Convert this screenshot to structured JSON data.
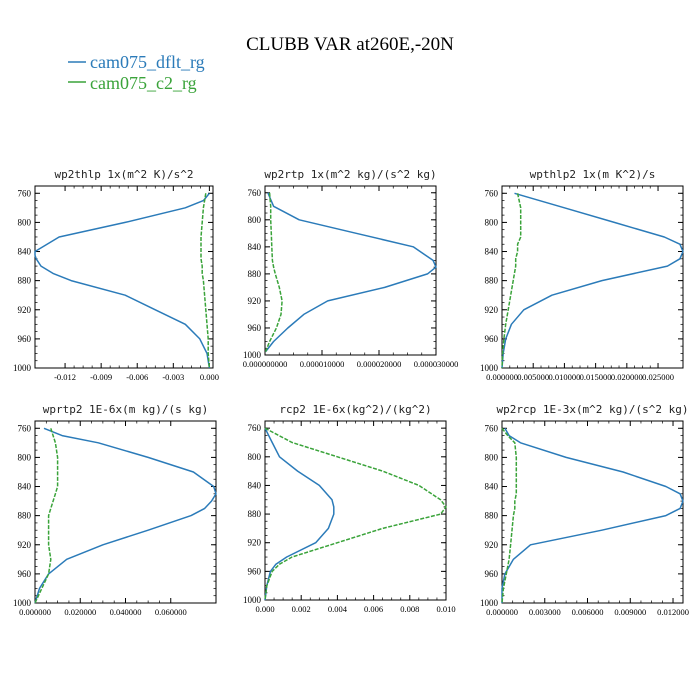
{
  "title": "CLUBB VAR at260E,-20N",
  "legend": [
    {
      "label": "cam075_dflt_rg",
      "color": "#2b7bb9"
    },
    {
      "label": "cam075_c2_rg",
      "color": "#3aa33a"
    }
  ],
  "chart_data": [
    {
      "type": "line",
      "title": "wp2thlp  1x(m^2 K)/s^2",
      "ylim": [
        1000,
        750
      ],
      "yticks": [
        "760",
        "800",
        "840",
        "880",
        "920",
        "960",
        "1000"
      ],
      "xlim": [
        -0.0145,
        0.0003
      ],
      "xticks": [
        -0.012,
        -0.009,
        -0.006,
        -0.003,
        0.0
      ],
      "xtick_labels": [
        "-0.012",
        "-0.009",
        "-0.006",
        "-0.003",
        "0.000"
      ],
      "y": [
        760,
        770,
        780,
        800,
        820,
        840,
        845,
        850,
        860,
        870,
        880,
        900,
        920,
        940,
        960,
        980,
        1000
      ],
      "series": [
        {
          "name": "cam075_dflt_rg",
          "values": [
            0.0,
            -0.0005,
            -0.002,
            -0.007,
            -0.0125,
            -0.0145,
            -0.0145,
            -0.0144,
            -0.014,
            -0.013,
            -0.0115,
            -0.007,
            -0.0045,
            -0.002,
            -0.0008,
            -0.0002,
            0.0
          ]
        },
        {
          "name": "cam075_c2_rg",
          "values": [
            -0.0003,
            -0.0004,
            -0.0005,
            -0.0006,
            -0.0007,
            -0.0007,
            -0.0007,
            -0.0007,
            -0.0006,
            -0.0006,
            -0.0005,
            -0.0004,
            -0.0003,
            -0.0002,
            -0.0001,
            -0.0001,
            0.0
          ]
        }
      ]
    },
    {
      "type": "line",
      "title": "wp2rtp  1x(m^2 kg)/(s^2 kg)",
      "ylim": [
        1000,
        750
      ],
      "yticks": [
        "760",
        "800",
        "840",
        "880",
        "920",
        "960",
        "1000"
      ],
      "xlim": [
        0.0,
        3e-05
      ],
      "xticks": [
        0.0,
        1e-05,
        2e-05,
        3e-05
      ],
      "xtick_labels": [
        "0.000000000",
        "0.000010000",
        "0.000020000",
        "0.000030000"
      ],
      "y": [
        760,
        770,
        780,
        800,
        820,
        840,
        860,
        870,
        880,
        900,
        920,
        940,
        960,
        980,
        995
      ],
      "series": [
        {
          "name": "cam075_dflt_rg",
          "values": [
            5e-07,
            1e-06,
            1.5e-06,
            6e-06,
            1.6e-05,
            2.6e-05,
            2.95e-05,
            3e-05,
            2.85e-05,
            2.1e-05,
            1.1e-05,
            6.8e-06,
            4e-06,
            1.5e-06,
            1e-07
          ]
        },
        {
          "name": "cam075_c2_rg",
          "values": [
            8e-07,
            9e-07,
            1e-06,
            1e-06,
            1.1e-06,
            1.2e-06,
            1.3e-06,
            1.5e-06,
            1.8e-06,
            2.5e-06,
            3e-06,
            2.8e-06,
            2e-06,
            8e-07,
            1e-07
          ]
        }
      ]
    },
    {
      "type": "line",
      "title": "wpthlp2  1x(m K^2)/s",
      "ylim": [
        1000,
        750
      ],
      "yticks": [
        "760",
        "800",
        "840",
        "880",
        "920",
        "960",
        "1000"
      ],
      "xlim": [
        0.0,
        0.029
      ],
      "xticks": [
        0.0,
        0.005,
        0.01,
        0.015,
        0.02,
        0.025
      ],
      "xtick_labels": [
        "0.000000",
        "0.005000",
        "0.010000",
        "0.015000",
        "0.020000",
        "0.025000"
      ],
      "y": [
        760,
        780,
        800,
        820,
        830,
        840,
        850,
        860,
        880,
        900,
        920,
        940,
        960,
        980,
        1000
      ],
      "series": [
        {
          "name": "cam075_dflt_rg",
          "values": [
            0.002,
            0.01,
            0.018,
            0.026,
            0.0285,
            0.029,
            0.0285,
            0.0265,
            0.016,
            0.008,
            0.0035,
            0.0015,
            0.0006,
            0.0002,
            0.0
          ]
        },
        {
          "name": "cam075_c2_rg",
          "values": [
            0.0025,
            0.003,
            0.003,
            0.003,
            0.0025,
            0.0025,
            0.0022,
            0.0022,
            0.0018,
            0.0014,
            0.001,
            0.0006,
            0.0003,
            0.0001,
            0.0
          ]
        }
      ]
    },
    {
      "type": "line",
      "title": "wprtp2  1E-6x(m kg)/(s kg)",
      "ylim": [
        1000,
        750
      ],
      "yticks": [
        "760",
        "800",
        "840",
        "880",
        "920",
        "960",
        "1000"
      ],
      "xlim": [
        0.0,
        0.08
      ],
      "xticks": [
        0.0,
        0.02,
        0.04,
        0.06
      ],
      "xtick_labels": [
        "0.000000",
        "0.020000",
        "0.040000",
        "0.060000"
      ],
      "y": [
        760,
        770,
        780,
        800,
        820,
        840,
        850,
        860,
        870,
        880,
        900,
        920,
        940,
        960,
        980,
        1000
      ],
      "series": [
        {
          "name": "cam075_dflt_rg",
          "values": [
            0.004,
            0.012,
            0.028,
            0.05,
            0.07,
            0.079,
            0.08,
            0.078,
            0.075,
            0.069,
            0.05,
            0.03,
            0.014,
            0.006,
            0.002,
            0.0
          ]
        },
        {
          "name": "cam075_c2_rg",
          "values": [
            0.007,
            0.008,
            0.009,
            0.01,
            0.01,
            0.01,
            0.009,
            0.008,
            0.007,
            0.006,
            0.006,
            0.006,
            0.007,
            0.006,
            0.003,
            0.0
          ]
        }
      ]
    },
    {
      "type": "line",
      "title": "rcp2  1E-6x(kg^2)/(kg^2)",
      "ylim": [
        1000,
        750
      ],
      "yticks": [
        "760",
        "800",
        "840",
        "880",
        "920",
        "960",
        "1000"
      ],
      "xlim": [
        0.0,
        0.01
      ],
      "xticks": [
        0.0,
        0.002,
        0.004,
        0.006,
        0.008,
        0.01
      ],
      "xtick_labels": [
        "0.000",
        "0.002",
        "0.004",
        "0.006",
        "0.008",
        "0.010"
      ],
      "y": [
        760,
        780,
        800,
        820,
        840,
        860,
        870,
        880,
        900,
        920,
        940,
        950,
        960,
        980,
        1000
      ],
      "series": [
        {
          "name": "cam075_dflt_rg",
          "values": [
            0.0,
            0.0004,
            0.0008,
            0.0018,
            0.003,
            0.0037,
            0.0038,
            0.0038,
            0.0035,
            0.0028,
            0.0012,
            0.0006,
            0.0003,
            0.0001,
            0.0
          ]
        },
        {
          "name": "cam075_c2_rg",
          "values": [
            0.0,
            0.0015,
            0.004,
            0.0065,
            0.0085,
            0.0097,
            0.01,
            0.0097,
            0.0065,
            0.004,
            0.0015,
            0.0008,
            0.0004,
            0.0001,
            0.0
          ]
        }
      ]
    },
    {
      "type": "line",
      "title": "wp2rcp  1E-3x(m^2 kg)/(s^2 kg)",
      "ylim": [
        1000,
        750
      ],
      "yticks": [
        "760",
        "800",
        "840",
        "880",
        "920",
        "960",
        "1000"
      ],
      "xlim": [
        0.0,
        0.0127
      ],
      "xticks": [
        0.0,
        0.003,
        0.006,
        0.009,
        0.012
      ],
      "xtick_labels": [
        "0.000000",
        "0.003000",
        "0.006000",
        "0.009000",
        "0.012000"
      ],
      "y": [
        760,
        770,
        780,
        800,
        820,
        840,
        850,
        860,
        870,
        880,
        900,
        920,
        940,
        960,
        980,
        1000
      ],
      "series": [
        {
          "name": "cam075_dflt_rg",
          "values": [
            0.0002,
            0.0005,
            0.0013,
            0.0045,
            0.0085,
            0.0115,
            0.0125,
            0.0127,
            0.0125,
            0.0115,
            0.007,
            0.002,
            0.0008,
            0.0002,
            0.0,
            0.0
          ]
        },
        {
          "name": "cam075_c2_rg",
          "values": [
            0.0,
            0.0004,
            0.0009,
            0.001,
            0.001,
            0.001,
            0.001,
            0.0009,
            0.0009,
            0.0008,
            0.0007,
            0.0006,
            0.0005,
            0.0003,
            0.0001,
            0.0
          ]
        }
      ]
    }
  ]
}
